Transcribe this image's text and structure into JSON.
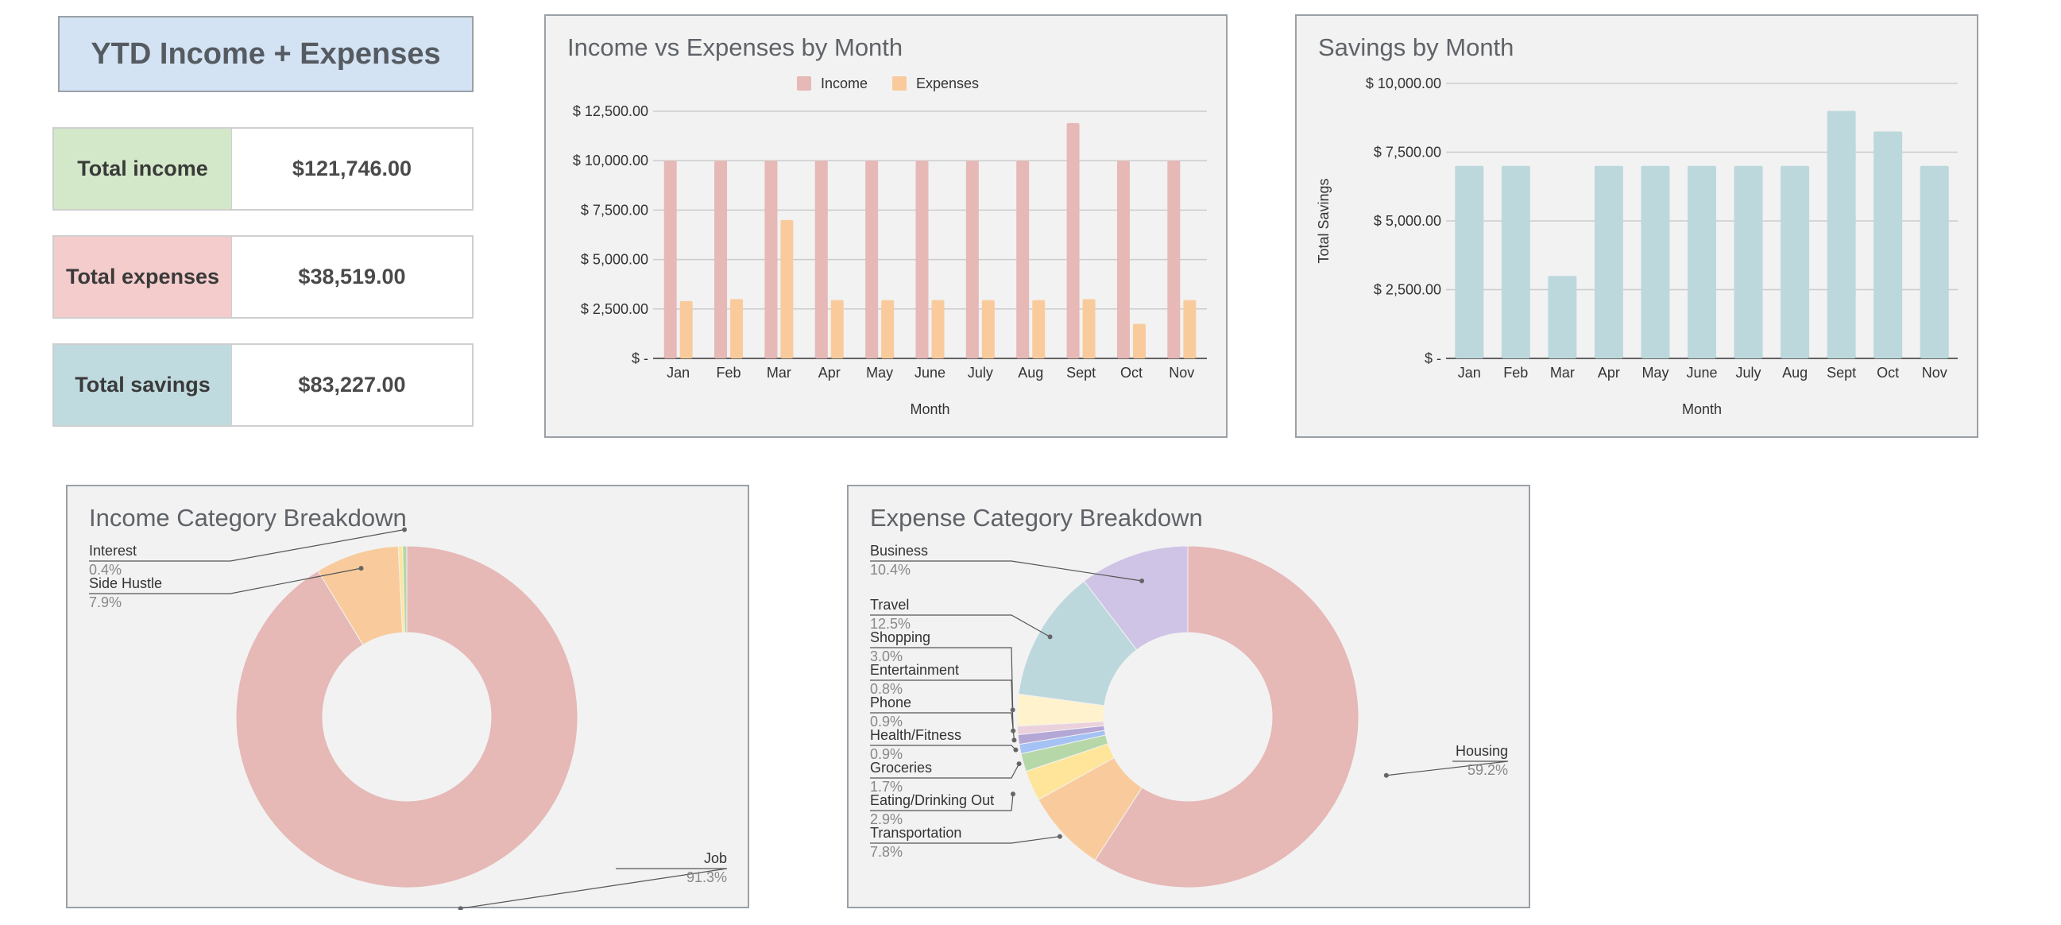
{
  "summary": {
    "title": "YTD Income + Expenses",
    "income_label": "Total income",
    "income_value": "$121,746.00",
    "expenses_label": "Total expenses",
    "expenses_value": "$38,519.00",
    "savings_label": "Total savings",
    "savings_value": "$83,227.00"
  },
  "colors": {
    "income_fill": "#d3e8c8",
    "expenses_fill": "#f4cccc",
    "savings_fill": "#c0dbe0",
    "title_fill": "#d3e3f4"
  },
  "chart_data": [
    {
      "type": "bar",
      "title": "Income vs Expenses by Month",
      "xlabel": "Month",
      "ylabel": "",
      "categories": [
        "Jan",
        "Feb",
        "Mar",
        "Apr",
        "May",
        "June",
        "July",
        "Aug",
        "Sept",
        "Oct",
        "Nov"
      ],
      "series": [
        {
          "name": "Income",
          "color": "#e6b8b6",
          "values": [
            10000,
            10000,
            10000,
            10000,
            10000,
            10000,
            10000,
            10000,
            11900,
            10000,
            10000
          ]
        },
        {
          "name": "Expenses",
          "color": "#f9cb9c",
          "values": [
            2900,
            3000,
            7000,
            2950,
            2950,
            2950,
            2950,
            2950,
            3000,
            1750,
            2950
          ]
        }
      ],
      "ylim": [
        0,
        12500
      ],
      "yticks": [
        0,
        2500,
        5000,
        7500,
        10000,
        12500
      ],
      "ytick_labels": [
        "$ -",
        "$ 2,500.00",
        "$ 5,000.00",
        "$ 7,500.00",
        "$ 10,000.00",
        "$ 12,500.00"
      ],
      "legend": "top",
      "grid": true
    },
    {
      "type": "bar",
      "title": "Savings by Month",
      "xlabel": "Month",
      "ylabel": "Total Savings",
      "categories": [
        "Jan",
        "Feb",
        "Mar",
        "Apr",
        "May",
        "June",
        "July",
        "Aug",
        "Sept",
        "Oct",
        "Nov"
      ],
      "series": [
        {
          "color": "#bcd8dc",
          "values": [
            7000,
            7000,
            3000,
            7000,
            7000,
            7000,
            7000,
            7000,
            9000,
            8250,
            7000
          ]
        }
      ],
      "ylim": [
        0,
        10000
      ],
      "yticks": [
        0,
        2500,
        5000,
        7500,
        10000
      ],
      "ytick_labels": [
        "$ -",
        "$ 2,500.00",
        "$ 5,000.00",
        "$ 7,500.00",
        "$ 10,000.00"
      ],
      "grid": true
    },
    {
      "type": "pie",
      "title": "Income Category Breakdown",
      "donut": true,
      "slices": [
        {
          "label": "Job",
          "percent": 91.3,
          "pct_label": "91.3%",
          "color": "#e6b8b6"
        },
        {
          "label": "Side Hustle",
          "percent": 7.9,
          "pct_label": "7.9%",
          "color": "#f9cb9c"
        },
        {
          "label": "",
          "percent": 0.4,
          "pct_label": "",
          "color": "#ffe599"
        },
        {
          "label": "Interest",
          "percent": 0.4,
          "pct_label": "0.4%",
          "color": "#b6d7a8"
        }
      ]
    },
    {
      "type": "pie",
      "title": "Expense Category Breakdown",
      "donut": true,
      "slices": [
        {
          "label": "Housing",
          "percent": 59.2,
          "pct_label": "59.2%",
          "color": "#e6b8b6"
        },
        {
          "label": "Transportation",
          "percent": 7.8,
          "pct_label": "7.8%",
          "color": "#f9cb9c"
        },
        {
          "label": "Eating/Drinking Out",
          "percent": 2.9,
          "pct_label": "2.9%",
          "color": "#ffe599"
        },
        {
          "label": "Groceries",
          "percent": 1.7,
          "pct_label": "1.7%",
          "color": "#b6d7a8"
        },
        {
          "label": "Health/Fitness",
          "percent": 0.9,
          "pct_label": "0.9%",
          "color": "#a4c2f4"
        },
        {
          "label": "Phone",
          "percent": 0.9,
          "pct_label": "0.9%",
          "color": "#b4a7d6"
        },
        {
          "label": "Entertainment",
          "percent": 0.8,
          "pct_label": "0.8%",
          "color": "#ead1dc"
        },
        {
          "label": "Shopping",
          "percent": 3.0,
          "pct_label": "3.0%",
          "color": "#fff2cc"
        },
        {
          "label": "Travel",
          "percent": 12.5,
          "pct_label": "12.5%",
          "color": "#bcd8dc"
        },
        {
          "label": "Business",
          "percent": 10.4,
          "pct_label": "10.4%",
          "color": "#cfc4e6"
        }
      ]
    }
  ]
}
